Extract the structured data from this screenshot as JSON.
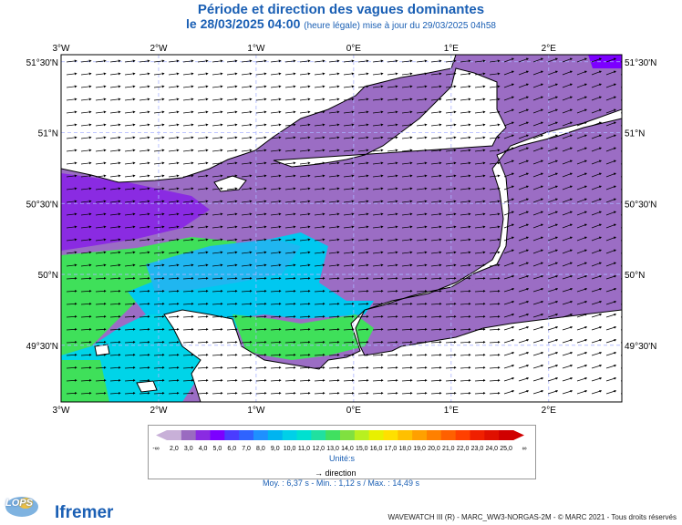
{
  "title": "Période et direction des vagues dominantes",
  "subtitle_main": "le 28/03/2025 04:00",
  "subtitle_small": "(heure légale) mise à jour du 29/03/2025 04h58",
  "map": {
    "lon_labels": [
      "3°W",
      "2°W",
      "1°W",
      "0°E",
      "1°E",
      "2°E"
    ],
    "lat_labels": [
      "51°30'N",
      "51°N",
      "50°30'N",
      "50°N",
      "49°30'N"
    ],
    "lon_range": [
      -3.0,
      2.75
    ],
    "lat_range": [
      49.1,
      51.55
    ],
    "grid": true
  },
  "legend": {
    "min_marker": "-∞",
    "max_marker": "∞",
    "values": [
      "2,0",
      "3,0",
      "4,0",
      "5,0",
      "6,0",
      "7,0",
      "8,0",
      "9,0",
      "10,0",
      "11,0",
      "12,0",
      "13,0",
      "14,0",
      "15,0",
      "16,0",
      "17,0",
      "18,0",
      "19,0",
      "20,0",
      "21,0",
      "22,0",
      "23,0",
      "24,0",
      "25,0"
    ],
    "colors": [
      "#c8b0d8",
      "#9a6bc0",
      "#8a2be2",
      "#7c00ff",
      "#4a3cff",
      "#2f63ff",
      "#1e90ff",
      "#00b4f0",
      "#00d0e8",
      "#00e0d0",
      "#20e0a0",
      "#40e060",
      "#80e040",
      "#b8f020",
      "#e8f000",
      "#ffe000",
      "#ffc000",
      "#ffa000",
      "#ff8000",
      "#ff6000",
      "#ff4000",
      "#f02000",
      "#e01000",
      "#d00000"
    ],
    "unit_label": "Unité:s",
    "direction_label": "direction"
  },
  "stats": "Moy. : 6,37 s   -   Min. : 1,12 s / Max. : 14,49 s",
  "logos": {
    "lops": "LOPS",
    "ifremer": "Ifremer"
  },
  "footer": "WAVEWATCH III (R) - MARC_WW3-NORGAS-2M - © MARC 2021 - Tous droits réservés",
  "colors": {
    "title": "#1a5fb4",
    "land": "#ffffff",
    "grid": "#aab4ff"
  }
}
